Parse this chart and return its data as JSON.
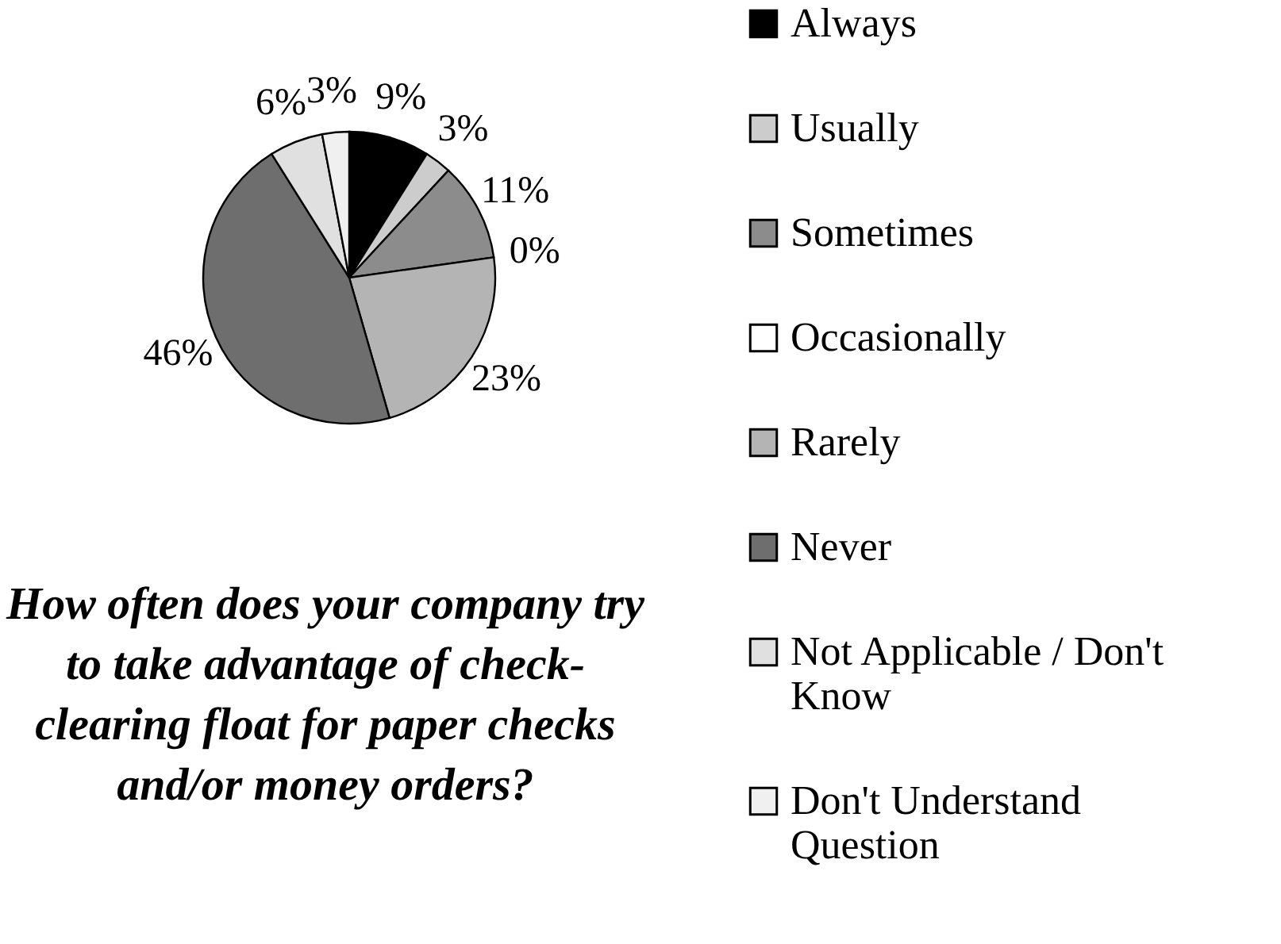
{
  "chart_data": {
    "type": "pie",
    "title": "How often does your company try to take advantage of check-clearing float for paper checks and/or money orders?",
    "categories": [
      "Always",
      "Usually",
      "Sometimes",
      "Occasionally",
      "Rarely",
      "Never",
      "Not Applicable / Don't Know",
      "Don't Understand Question"
    ],
    "values": [
      9,
      3,
      11,
      0,
      23,
      46,
      6,
      3
    ],
    "colors": [
      "#000000",
      "#cccccc",
      "#8c8c8c",
      "#ffffff",
      "#b4b4b4",
      "#6e6e6e",
      "#e0e0e0",
      "#f0f0f0"
    ],
    "value_labels": [
      "9%",
      "3%",
      "11%",
      "0%",
      "23%",
      "46%",
      "6%",
      "3%"
    ],
    "legend": "right"
  }
}
